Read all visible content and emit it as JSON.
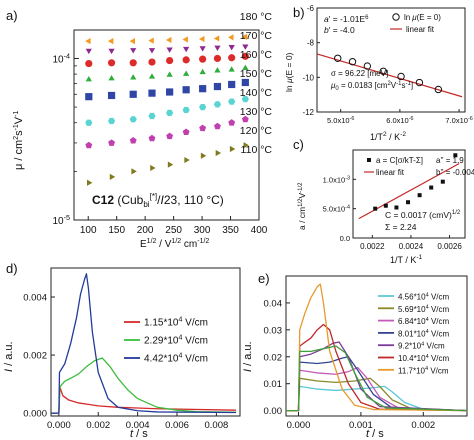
{
  "colors": {
    "T180": "#f39a1e",
    "T170": "#8e2a8f",
    "T160": "#dd2a2a",
    "T150": "#2eae3a",
    "T140": "#2f46a6",
    "T130": "#5ad3d3",
    "T120": "#c13fae",
    "T110": "#7f7a1c",
    "d_red": "#d62a2a",
    "d_green": "#3cbd3c",
    "d_blue": "#233a9b",
    "e_cyan": "#5bc8d6",
    "e_olive": "#8a8a2a",
    "e_magenta": "#c45ab7",
    "e_darkblue": "#34448f",
    "e_purple": "#7a3a9a",
    "e_darkred": "#c0282c",
    "e_green": "#3f9f3c",
    "e_orange": "#e79a2c"
  },
  "chart_data": [
    {
      "panel": "a)",
      "type": "scatter",
      "xlabel_main": "E",
      "xlabel_sup1": "1/2",
      "xlabel_mid": " / V",
      "xlabel_sup2": "1/2",
      "xlabel_tail": " cm",
      "xlabel_sup3": "-1/2",
      "ylabel_main": "μ / cm",
      "ylabel_sup1": "2",
      "ylabel_mid": "s",
      "ylabel_sup2": "-1",
      "ylabel_tail": "V",
      "ylabel_sup3": "-1",
      "xlim": [
        75,
        400
      ],
      "ylim": [
        1e-05,
        0.00015
      ],
      "yscale": "log",
      "xticks": [
        100,
        150,
        200,
        250,
        300,
        350,
        400
      ],
      "yticks_base": "10",
      "ytick_exps": [
        "-5",
        "-4"
      ],
      "annotation": {
        "bold": "C12",
        "pre": " (Cub",
        "sub": "bi",
        "sup": "[*]",
        "post": "/",
        "italic": "I",
        "tail": "23, 110 °C)"
      },
      "series": [
        {
          "name": "180 °C",
          "marker": "tri-left",
          "color": "T180",
          "x": [
            101,
            141,
            179,
            212,
            243,
            272,
            301,
            327,
            352,
            376
          ],
          "y": [
            0.000128,
            0.000128,
            0.000128,
            0.000129,
            0.00013,
            0.000131,
            0.000132,
            0.000133,
            0.000135,
            0.000136
          ]
        },
        {
          "name": "170 °C",
          "marker": "tri-down",
          "color": "T170",
          "x": [
            101,
            141,
            179,
            212,
            243,
            272,
            301,
            327,
            352,
            376
          ],
          "y": [
            0.000112,
            0.000112,
            0.000113,
            0.000113,
            0.000114,
            0.000115,
            0.000116,
            0.000117,
            0.000118,
            0.000119
          ]
        },
        {
          "name": "160 °C",
          "marker": "circle",
          "color": "T160",
          "x": [
            101,
            141,
            179,
            212,
            243,
            272,
            301,
            327,
            352,
            376
          ],
          "y": [
            9.3e-05,
            9.4e-05,
            9.4e-05,
            9.5e-05,
            9.7e-05,
            9.8e-05,
            9.9e-05,
            0.0001,
            0.000101,
            0.000103
          ]
        },
        {
          "name": "150 °C",
          "marker": "tri-up",
          "color": "T150",
          "x": [
            101,
            141,
            179,
            212,
            243,
            272,
            301,
            327,
            352,
            376
          ],
          "y": [
            7.4e-05,
            7.5e-05,
            7.6e-05,
            7.7e-05,
            7.9e-05,
            8e-05,
            8.2e-05,
            8.4e-05,
            8.5e-05,
            8.7e-05
          ]
        },
        {
          "name": "140 °C",
          "marker": "square",
          "color": "T140",
          "x": [
            101,
            141,
            179,
            212,
            243,
            272,
            301,
            327,
            352,
            376
          ],
          "y": [
            5.8e-05,
            5.9e-05,
            6e-05,
            6.1e-05,
            6.2e-05,
            6.4e-05,
            6.5e-05,
            6.7e-05,
            6.9e-05,
            7.1e-05
          ]
        },
        {
          "name": "130 °C",
          "marker": "hexagon",
          "color": "T130",
          "x": [
            101,
            141,
            179,
            212,
            243,
            272,
            301,
            327,
            352,
            376
          ],
          "y": [
            4e-05,
            4.1e-05,
            4.2e-05,
            4.4e-05,
            4.6e-05,
            4.8e-05,
            5e-05,
            5.2e-05,
            5.4e-05,
            5.6e-05
          ]
        },
        {
          "name": "120 °C",
          "marker": "pentagon",
          "color": "T120",
          "x": [
            101,
            141,
            179,
            212,
            243,
            272,
            301,
            327,
            352,
            376
          ],
          "y": [
            2.9e-05,
            3e-05,
            3.1e-05,
            3.2e-05,
            3.3e-05,
            3.5e-05,
            3.7e-05,
            3.8e-05,
            4e-05,
            4.2e-05
          ]
        },
        {
          "name": "110 °C",
          "marker": "tri-right",
          "color": "T110",
          "x": [
            101,
            141,
            179,
            212,
            243,
            272,
            301,
            327,
            352,
            376
          ],
          "y": [
            1.7e-05,
            1.85e-05,
            2e-05,
            2.1e-05,
            2.2e-05,
            2.35e-05,
            2.5e-05,
            2.6e-05,
            2.75e-05,
            2.9e-05
          ]
        }
      ]
    },
    {
      "panel": "b)",
      "type": "scatter",
      "xlabel_pre": "1/T",
      "xlabel_sup1": "2",
      "xlabel_mid": " / K",
      "xlabel_sup2": "-2",
      "ylabel_pre": "ln ",
      "ylabel_mu": "μ",
      "ylabel_post": "(E = 0)",
      "xlim": [
        4.6e-06,
        7.1e-06
      ],
      "ylim": [
        -12,
        -6
      ],
      "xticks": [
        5e-06,
        6e-06,
        7e-06
      ],
      "xtick_labels": [
        {
          "m": "5.0x10",
          "e": "-6"
        },
        {
          "m": "6.0x10",
          "e": "-6"
        },
        {
          "m": "7.0x10",
          "e": "-6"
        }
      ],
      "yticks": [
        -12,
        -10,
        -8,
        -6
      ],
      "legend": [
        {
          "pre": "ln",
          "mu": "μ",
          "post": "(E = 0)",
          "kind": "marker"
        },
        {
          "text": "linear fit",
          "kind": "line"
        }
      ],
      "fit_text": {
        "a_pre": "a",
        "a_val": "' = -1.01E",
        "a_sup": "6",
        "b_pre": "b",
        "b_val": "' = -4.0",
        "sigma": "σ = 96.22 [meV]",
        "mu0_pre": "μ",
        "mu0_sub": "0",
        "mu0_mid": " = 0.0183 [cm",
        "mu0_sup1": "2",
        "mu0_mid2": "V",
        "mu0_sup2": "-1",
        "mu0_mid3": "s",
        "mu0_sup3": "-1",
        "mu0_tail": "]"
      },
      "points_x": [
        4.95e-06,
        5.2e-06,
        5.45e-06,
        5.72e-06,
        6.02e-06,
        6.33e-06,
        6.65e-06
      ],
      "points_y": [
        -8.9,
        -9.1,
        -9.35,
        -9.65,
        -9.95,
        -10.3,
        -10.7
      ],
      "fit": {
        "x": [
          4.6e-06,
          7.05e-06
        ],
        "y": [
          -8.65,
          -11.12
        ]
      }
    },
    {
      "panel": "c)",
      "type": "scatter",
      "xlabel_pre": "1/T / K",
      "xlabel_sup": "-1",
      "ylabel_pre": "a / cm",
      "ylabel_sup1": "1/2",
      "ylabel_mid": "V",
      "ylabel_sup2": "-1/2",
      "xlim": [
        0.0021,
        0.00268
      ],
      "ylim": [
        0,
        0.0015
      ],
      "xticks": [
        0.0022,
        0.0024,
        0.0026
      ],
      "yticks": [
        0,
        0.0005,
        0.001
      ],
      "ytick_labels": [
        {
          "m": "0.0",
          "e": ""
        },
        {
          "m": "5.0x10",
          "e": "-4"
        },
        {
          "m": "1.0x10",
          "e": "-3"
        }
      ],
      "legend_a": "a = C[σ/kT-Σ]",
      "legend_fit": "linear fit",
      "fit_a": "a'' = 1.9",
      "fit_b": "b'' = -0.004",
      "text_C": "C = 0.0017 (cmV)",
      "text_C_sup": "1/2",
      "text_S": "Σ = 2.24",
      "points_x": [
        0.002215,
        0.00227,
        0.002325,
        0.002385,
        0.002445,
        0.002505,
        0.002565,
        0.00263
      ],
      "points_y": [
        0.0005,
        0.00055,
        0.00052,
        0.00061,
        0.00073,
        0.00086,
        0.00096,
        0.00141
      ],
      "fit": {
        "x": [
          0.00213,
          0.00265
        ],
        "y": [
          0.00033,
          0.00127
        ]
      }
    },
    {
      "panel": "d)",
      "type": "line",
      "xlabel_t": "t",
      "xlabel_rest": " / s",
      "ylabel_I": "I",
      "ylabel_rest": " / a.u.",
      "xlim": [
        -0.0004,
        0.0092
      ],
      "ylim": [
        -0.0001,
        0.005
      ],
      "xticks": [
        0,
        0.002,
        0.004,
        0.006,
        0.008
      ],
      "xtick_labels": [
        "0.000",
        "0.002",
        "0.004",
        "0.006",
        "0.008"
      ],
      "yticks": [
        0,
        0.002,
        0.004
      ],
      "ytick_labels": [
        "0.000",
        "0.002",
        "0.004"
      ],
      "series": [
        {
          "name_m": "1.15*10",
          "name_e": "4",
          "name_u": " V/cm",
          "color": "d_red",
          "x": [
            -0.0004,
            0,
            5e-05,
            0.0002,
            0.0005,
            0.001,
            0.0015,
            0.002,
            0.003,
            0.005,
            0.009
          ],
          "y": [
            0,
            0,
            0.0009,
            0.0006,
            0.00045,
            0.00035,
            0.0003,
            0.00025,
            0.0002,
            0.00015,
            0.0001
          ]
        },
        {
          "name_m": "2.29*10",
          "name_e": "4",
          "name_u": " V/cm",
          "color": "d_green",
          "x": [
            -0.0004,
            0,
            5e-05,
            0.0003,
            0.0006,
            0.001,
            0.0014,
            0.0018,
            0.0022,
            0.0026,
            0.003,
            0.0035,
            0.004,
            0.005,
            0.006,
            0.007,
            0.009
          ],
          "y": [
            0,
            0,
            0.0009,
            0.0011,
            0.0012,
            0.00135,
            0.0016,
            0.0018,
            0.0019,
            0.0016,
            0.0012,
            0.0008,
            0.0005,
            0.0002,
            0.0001,
            5e-05,
            3e-05
          ]
        },
        {
          "name_m": "4.42*10",
          "name_e": "4",
          "name_u": " V/cm",
          "color": "d_blue",
          "x": [
            -0.0004,
            0,
            3e-05,
            0.0003,
            0.0006,
            0.0009,
            0.0011,
            0.0013,
            0.0014,
            0.0015,
            0.0017,
            0.002,
            0.0025,
            0.003,
            0.004,
            0.005,
            0.009
          ],
          "y": [
            0,
            0,
            0.0014,
            0.0017,
            0.0024,
            0.0033,
            0.0041,
            0.0046,
            0.0048,
            0.0043,
            0.0028,
            0.0014,
            0.0005,
            0.0002,
            8e-05,
            4e-05,
            2e-05
          ]
        }
      ]
    },
    {
      "panel": "e)",
      "type": "line",
      "xlabel_t": "t",
      "xlabel_rest": " / s",
      "ylabel_I": "I",
      "ylabel_rest": " / a.u.",
      "xlim": [
        -0.0002,
        0.0027
      ],
      "ylim": [
        -0.002,
        0.05
      ],
      "xticks": [
        0,
        0.001,
        0.002
      ],
      "xtick_labels": [
        "0.000",
        "0.001",
        "0.002"
      ],
      "yticks": [
        0,
        0.01,
        0.02,
        0.03,
        0.04
      ],
      "ytick_labels": [
        "0.00",
        "0.01",
        "0.02",
        "0.03",
        "0.04"
      ],
      "series": [
        {
          "name_m": "4.56*10",
          "name_e": "4",
          "name_u": " V/cm",
          "color": "e_cyan",
          "x": [
            -0.0002,
            0,
            2e-05,
            0.0003,
            0.0006,
            0.0009,
            0.0012,
            0.00138,
            0.0015,
            0.0017,
            0.002,
            0.0027
          ],
          "y": [
            0,
            0,
            0.009,
            0.008,
            0.0075,
            0.008,
            0.0085,
            0.009,
            0.007,
            0.003,
            0.0005,
            0
          ]
        },
        {
          "name_m": "5.69*10",
          "name_e": "4",
          "name_u": " V/cm",
          "color": "e_olive",
          "x": [
            -0.0002,
            0,
            2e-05,
            0.0003,
            0.0006,
            0.0009,
            0.00115,
            0.0013,
            0.0015,
            0.0018,
            0.0027
          ],
          "y": [
            0,
            0,
            0.012,
            0.011,
            0.0105,
            0.011,
            0.012,
            0.009,
            0.004,
            0.0008,
            0
          ]
        },
        {
          "name_m": "6.84*10",
          "name_e": "4",
          "name_u": " V/cm",
          "color": "e_magenta",
          "x": [
            -0.0002,
            0,
            2e-05,
            0.0003,
            0.0006,
            0.0008,
            0.00095,
            0.0011,
            0.0013,
            0.0016,
            0.0027
          ],
          "y": [
            0,
            0,
            0.015,
            0.014,
            0.0135,
            0.0145,
            0.016,
            0.012,
            0.005,
            0.001,
            0
          ]
        },
        {
          "name_m": "8.01*10",
          "name_e": "4",
          "name_u": " V/cm",
          "color": "e_darkblue",
          "x": [
            -0.0002,
            0,
            2e-05,
            0.0003,
            0.0005,
            0.0007,
            0.0008,
            0.00095,
            0.0012,
            0.0015,
            0.0027
          ],
          "y": [
            0,
            0,
            0.018,
            0.0175,
            0.018,
            0.0195,
            0.02,
            0.015,
            0.006,
            0.001,
            0
          ]
        },
        {
          "name_m": "9.2*10",
          "name_e": "4",
          "name_u": " V/cm",
          "color": "e_purple",
          "x": [
            -0.0002,
            0,
            2e-05,
            0.0002,
            0.0004,
            0.00055,
            0.00065,
            0.0008,
            0.001,
            0.0013,
            0.0027
          ],
          "y": [
            0,
            0,
            0.02,
            0.021,
            0.023,
            0.025,
            0.0255,
            0.02,
            0.008,
            0.0015,
            0
          ]
        },
        {
          "name_m": "10.4*10",
          "name_e": "4",
          "name_u": " V/cm",
          "color": "e_darkred",
          "x": [
            -0.0002,
            0,
            2e-05,
            0.0002,
            0.0003,
            0.0004,
            0.0005,
            0.0006,
            0.0008,
            0.001,
            0.0013,
            0.0027
          ],
          "y": [
            0,
            0,
            0.024,
            0.027,
            0.03,
            0.032,
            0.03,
            0.022,
            0.01,
            0.003,
            0.0005,
            0
          ]
        },
        {
          "name_m": "11.7*10",
          "name_e": "4",
          "name_u": " V/cm",
          "color": "e_orange",
          "x": [
            -0.0002,
            0,
            2e-05,
            0.0001,
            0.0002,
            0.0003,
            0.00035,
            0.0004,
            0.0005,
            0.0007,
            0.0009,
            0.0012,
            0.0027
          ],
          "y": [
            0,
            0,
            0.03,
            0.036,
            0.042,
            0.046,
            0.047,
            0.04,
            0.022,
            0.008,
            0.002,
            0.0004,
            0
          ]
        },
        {
          "name_m": "",
          "name_e": "",
          "name_u": "",
          "color": "e_green",
          "x": [
            -0.0002,
            0,
            2e-05,
            0.0002,
            0.0004,
            0.0006,
            0.00075,
            0.0009,
            0.0011,
            0.0014,
            0.0027
          ],
          "y": [
            0,
            0,
            0.022,
            0.022,
            0.023,
            0.024,
            0.0215,
            0.014,
            0.005,
            0.001,
            0
          ]
        }
      ]
    }
  ]
}
